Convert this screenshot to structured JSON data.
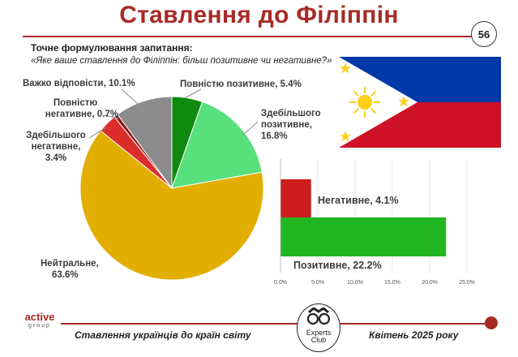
{
  "header": {
    "title": "Ставлення до Філіппін",
    "page_number": "56"
  },
  "question": {
    "heading": "Точне формулювання запитання:",
    "text": "«Яке ваше ставлення до Філіппін: більш позитивне чи негативне?»"
  },
  "pie_labels": {
    "fully_positive": "Повністю позитивне, 5.4%",
    "mostly_positive_1": "Здебільшого",
    "mostly_positive_2": "позитивне,",
    "mostly_positive_3": "16.8%",
    "neutral_1": "Нейтральне,",
    "neutral_2": "63.6%",
    "mostly_negative_1": "Здебільшого",
    "mostly_negative_2": "негативне,",
    "mostly_negative_3": "3.4%",
    "fully_negative_1": "Повністю",
    "fully_negative_2": "негативне, 0.7%",
    "hard_to_say": "Важко відповісти, 10.1%"
  },
  "bar_labels": {
    "negative": "Негативне, 4.1%",
    "positive": "Позитивне, 22.2%"
  },
  "footer": {
    "left": "Ставлення українців до країн світу",
    "right": "Квітень 2025 року",
    "logo_active": "active",
    "logo_group": "group",
    "logo_experts": "Experts",
    "logo_club": "Club"
  },
  "colors": {
    "accent": "#a82a26",
    "fully_positive": "#0f8a0f",
    "mostly_positive": "#58e07c",
    "neutral": "#e2ae00",
    "mostly_negative": "#dc2d2d",
    "fully_negative": "#8b1a1a",
    "hard_to_say": "#8c8c8c",
    "bar_negative": "#cc1d1d",
    "bar_positive": "#22b522",
    "flag_blue": "#0038a8",
    "flag_red": "#ce1126",
    "flag_yellow": "#fcd116"
  },
  "chart_data": [
    {
      "type": "pie",
      "categories": [
        "Повністю позитивне",
        "Здебільшого позитивне",
        "Нейтральне",
        "Здебільшого негативне",
        "Повністю негативне",
        "Важко відповісти"
      ],
      "values": [
        5.4,
        16.8,
        63.6,
        3.4,
        0.7,
        10.1
      ],
      "unit": "%"
    },
    {
      "type": "bar",
      "orientation": "horizontal",
      "categories": [
        "Негативне",
        "Позитивне"
      ],
      "values": [
        4.1,
        22.2
      ],
      "xlim": [
        0,
        25
      ],
      "xticks": [
        "0.0%",
        "5.0%",
        "10.0%",
        "15.0%",
        "20.0%",
        "25.0%"
      ],
      "grid": true
    }
  ]
}
